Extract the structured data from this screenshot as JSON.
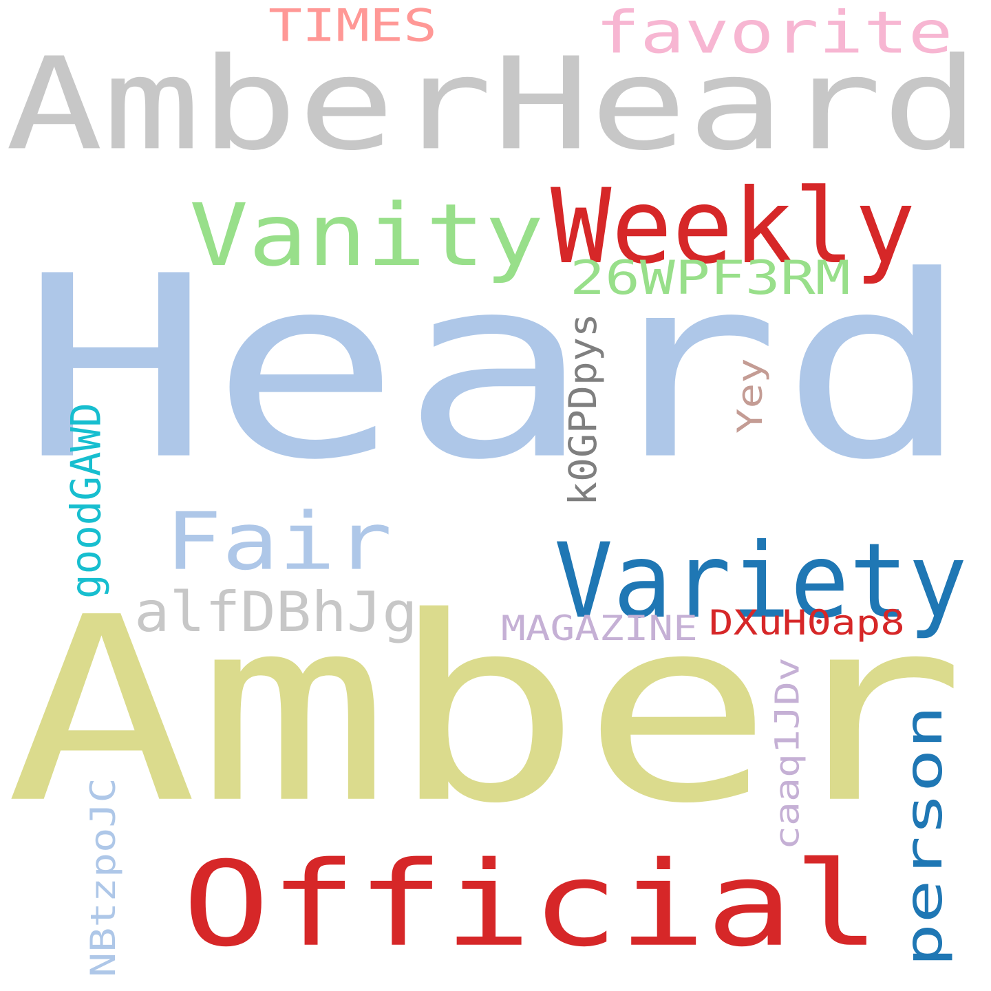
{
  "words": [
    {
      "key": "heard",
      "text": "Heard",
      "color": "#aec7e8",
      "orientation": "horizontal"
    },
    {
      "key": "amber",
      "text": "Amber",
      "color": "#dbdb8d",
      "orientation": "horizontal"
    },
    {
      "key": "amberheard",
      "text": "AmberHeard",
      "color": "#c7c7c7",
      "orientation": "horizontal"
    },
    {
      "key": "official",
      "text": "Official",
      "color": "#d62728",
      "orientation": "horizontal"
    },
    {
      "key": "vanity",
      "text": "Vanity",
      "color": "#98df8a",
      "orientation": "horizontal"
    },
    {
      "key": "weekly",
      "text": "Weekly",
      "color": "#d62728",
      "orientation": "horizontal"
    },
    {
      "key": "variety",
      "text": "Variety",
      "color": "#1f77b4",
      "orientation": "horizontal"
    },
    {
      "key": "fair",
      "text": "Fair",
      "color": "#aec7e8",
      "orientation": "horizontal"
    },
    {
      "key": "person",
      "text": "person",
      "color": "#1f77b4",
      "orientation": "vertical"
    },
    {
      "key": "favorite",
      "text": "favorite",
      "color": "#f7b6d2",
      "orientation": "horizontal"
    },
    {
      "key": "times",
      "text": "TIMES",
      "color": "#ff9896",
      "orientation": "horizontal"
    },
    {
      "key": "26wpf3rm",
      "text": "26WPF3RM",
      "color": "#98df8a",
      "orientation": "horizontal"
    },
    {
      "key": "alfdbhjg",
      "text": "alfDBhJg",
      "color": "#c7c7c7",
      "orientation": "horizontal"
    },
    {
      "key": "k0gpdpys",
      "text": "k0GPDpys",
      "color": "#7f7f7f",
      "orientation": "vertical"
    },
    {
      "key": "goodgawd",
      "text": "goodGAWD",
      "color": "#17becf",
      "orientation": "vertical"
    },
    {
      "key": "magazine",
      "text": "MAGAZINE",
      "color": "#c5b0d5",
      "orientation": "horizontal"
    },
    {
      "key": "dxuh0ap8",
      "text": "DXuH0ap8",
      "color": "#d62728",
      "orientation": "horizontal"
    },
    {
      "key": "caaq1jdv",
      "text": "caaq1JDv",
      "color": "#c5b0d5",
      "orientation": "vertical"
    },
    {
      "key": "nbtzpojc",
      "text": "NBtzpoJC",
      "color": "#aec7e8",
      "orientation": "vertical"
    },
    {
      "key": "yey",
      "text": "Yey",
      "color": "#c49c94",
      "orientation": "vertical"
    }
  ]
}
